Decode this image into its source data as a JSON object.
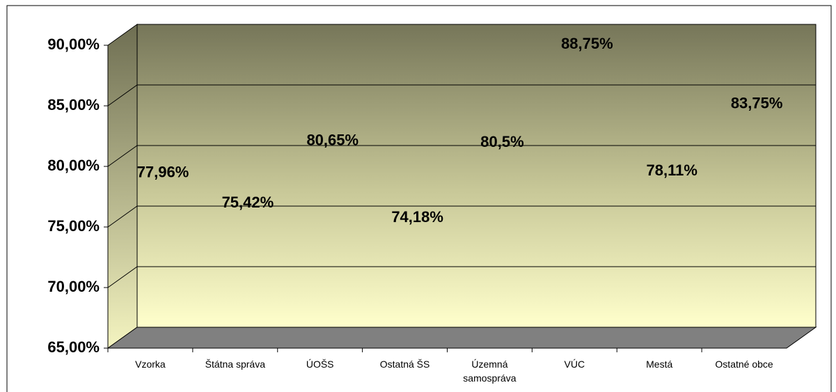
{
  "chart_data": {
    "type": "bar3d",
    "categories": [
      "Vzorka",
      "Štátna správa",
      "ÚOŠS",
      "Ostatná ŠS",
      "Územná samospráva",
      "VÚC",
      "Mestá",
      "Ostatné obce"
    ],
    "values": [
      77.96,
      75.42,
      80.65,
      74.18,
      80.5,
      88.75,
      78.11,
      83.75
    ],
    "value_labels": [
      "77,96%",
      "75,42%",
      "80,65%",
      "74,18%",
      "80,5%",
      "88,75%",
      "78,11%",
      "83,75%"
    ],
    "color": "#b890f0",
    "ylim": [
      65,
      90
    ],
    "yticks": [
      {
        "value": 65,
        "label": "65,00%"
      },
      {
        "value": 70,
        "label": "70,00%"
      },
      {
        "value": 75,
        "label": "75,00%"
      },
      {
        "value": 80,
        "label": "80,00%"
      },
      {
        "value": 85,
        "label": "85,00%"
      },
      {
        "value": 90,
        "label": "90,00%"
      }
    ],
    "grid": true
  }
}
